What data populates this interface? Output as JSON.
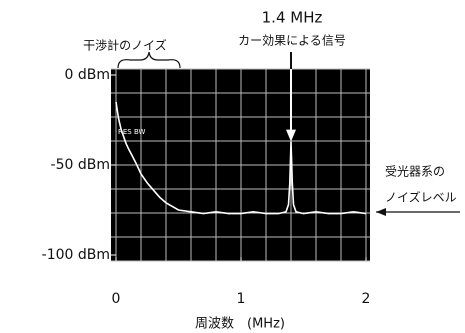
{
  "chart_data": {
    "type": "line",
    "title": "1.4 MHz",
    "subtitle": "カー効果による信号",
    "annotations": [
      "干渉計のノイズ",
      "受光器系の",
      "ノイズレベル",
      "RES BW"
    ],
    "xlabel": "周波数　(MHz)",
    "xlim": [
      0,
      2
    ],
    "xticks": [
      0,
      1,
      2
    ],
    "ylim": [
      -100,
      0
    ],
    "yticks": [
      {
        "value": 0,
        "label": "0 dBm"
      },
      {
        "value": -50,
        "label": "-50 dBm"
      },
      {
        "value": -100,
        "label": "-100 dBm"
      }
    ],
    "graticule": {
      "x_divisions": 10,
      "y_divisions": 8
    },
    "background": "#000000",
    "series": [
      {
        "color": "#ffffff",
        "x": [
          0,
          0.02,
          0.04,
          0.06,
          0.08,
          0.1,
          0.13,
          0.16,
          0.2,
          0.25,
          0.3,
          0.35,
          0.4,
          0.45,
          0.5,
          0.6,
          0.7,
          0.8,
          0.9,
          1.0,
          1.1,
          1.2,
          1.3,
          1.36,
          1.38,
          1.39,
          1.4,
          1.41,
          1.42,
          1.44,
          1.5,
          1.6,
          1.7,
          1.8,
          1.9,
          2.0
        ],
        "values": [
          -15,
          -24,
          -30,
          -34,
          -38,
          -41,
          -45,
          -49,
          -55,
          -60,
          -64,
          -68,
          -71,
          -73,
          -75,
          -76,
          -77,
          -76,
          -77,
          -77,
          -76,
          -77,
          -77,
          -76,
          -72,
          -60,
          -37,
          -60,
          -72,
          -76,
          -77,
          -76,
          -77,
          -77,
          -76,
          -77
        ]
      }
    ]
  }
}
